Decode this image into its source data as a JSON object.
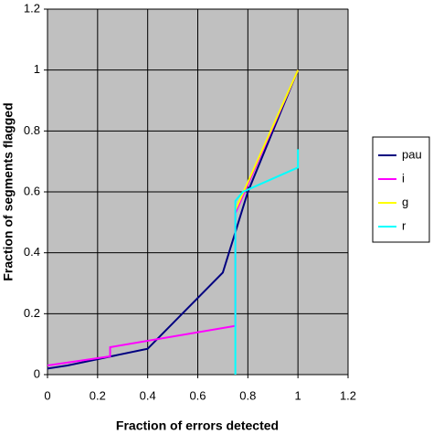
{
  "chart_data": {
    "type": "line",
    "x_label": "Fraction of errors detected",
    "y_label": "Fraction of segments flagged",
    "xlim": [
      0,
      1.2
    ],
    "ylim": [
      0,
      1.2
    ],
    "xticks": [
      0,
      0.2,
      0.4,
      0.6,
      0.8,
      1,
      1.2
    ],
    "yticks": [
      0,
      0.2,
      0.4,
      0.6,
      0.8,
      1,
      1.2
    ],
    "grid": true,
    "legend": "right",
    "series": [
      {
        "name": "pau",
        "color": "#000080",
        "x": [
          0,
          0.08,
          0.4,
          0.7,
          0.8,
          1
        ],
        "values": [
          0.02,
          0.03,
          0.085,
          0.335,
          0.6,
          1
        ]
      },
      {
        "name": "i",
        "color": "#ff00ff",
        "x": [
          0,
          0.25,
          0.25,
          0.75,
          0.75,
          1
        ],
        "values": [
          0.03,
          0.06,
          0.09,
          0.16,
          0.53,
          1
        ]
      },
      {
        "name": "g",
        "color": "#ffff00",
        "x": [
          0.75,
          1
        ],
        "values": [
          0.54,
          1
        ]
      },
      {
        "name": "r",
        "color": "#00ffff",
        "x": [
          0.75,
          0.75,
          0.78,
          1,
          1
        ],
        "values": [
          0,
          0.57,
          0.6,
          0.68,
          0.74
        ]
      }
    ]
  }
}
